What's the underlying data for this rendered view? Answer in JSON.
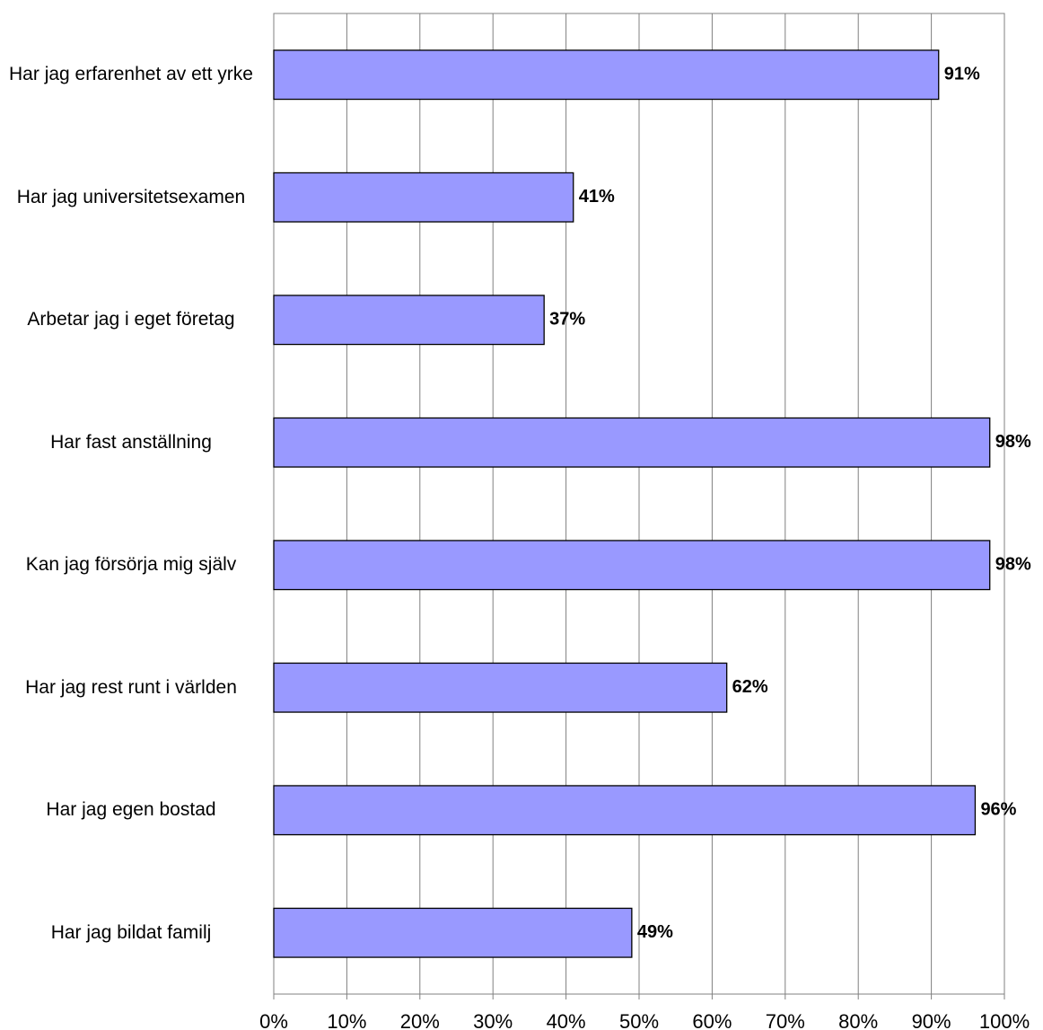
{
  "chart_data": {
    "type": "barh",
    "categories": [
      "Har jag erfarenhet av ett yrke",
      "Har jag universitetsexamen",
      "Arbetar jag i eget företag",
      "Har fast anställning",
      "Kan jag försörja mig själv",
      "Har jag rest runt i världen",
      "Har jag egen bostad",
      "Har jag bildat familj"
    ],
    "values": [
      91,
      41,
      37,
      98,
      98,
      62,
      96,
      49
    ],
    "value_labels": [
      "91%",
      "41%",
      "37%",
      "98%",
      "98%",
      "62%",
      "96%",
      "49%"
    ],
    "color": "#9999ff",
    "xlim": [
      0,
      100
    ],
    "xticks": [
      {
        "value": 0,
        "label": "0%"
      },
      {
        "value": 10,
        "label": "10%"
      },
      {
        "value": 20,
        "label": "20%"
      },
      {
        "value": 30,
        "label": "30%"
      },
      {
        "value": 40,
        "label": "40%"
      },
      {
        "value": 50,
        "label": "50%"
      },
      {
        "value": 60,
        "label": "60%"
      },
      {
        "value": 70,
        "label": "70%"
      },
      {
        "value": 80,
        "label": "80%"
      },
      {
        "value": 90,
        "label": "90%"
      },
      {
        "value": 100,
        "label": "100%"
      }
    ],
    "grid": true
  }
}
